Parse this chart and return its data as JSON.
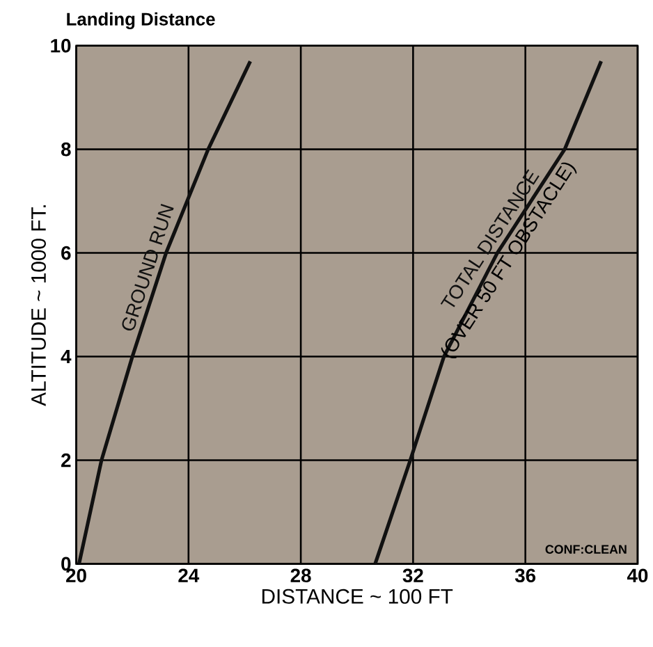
{
  "chart_data": {
    "type": "line",
    "title": "Landing Distance",
    "xlabel": "DISTANCE ~ 100 FT",
    "ylabel": "ALTITUDE ~ 1000 FT.",
    "xlim": [
      20,
      40
    ],
    "ylim": [
      0,
      10
    ],
    "xticks": [
      20,
      24,
      28,
      32,
      36,
      40
    ],
    "yticks": [
      0,
      2,
      4,
      6,
      8,
      10
    ],
    "grid": true,
    "legend": false,
    "marker": "none",
    "line_style": "solid",
    "series": [
      {
        "name": "GROUND RUN",
        "color": "#111111",
        "x": [
          20.1,
          20.9,
          22.0,
          23.2,
          24.7,
          26.2
        ],
        "values": [
          0,
          2,
          4,
          6,
          8,
          9.7
        ]
      },
      {
        "name": "TOTAL DISTANCE",
        "color": "#111111",
        "x": [
          30.65,
          31.9,
          33.1,
          35.0,
          37.4,
          38.7
        ],
        "values": [
          0,
          2,
          4,
          6,
          8,
          9.7
        ]
      }
    ],
    "annotations": [
      {
        "text": "(OVER 50 FT OBSTACLE)",
        "x": 35.0,
        "y": 6
      },
      "CONF:CLEAN"
    ]
  }
}
